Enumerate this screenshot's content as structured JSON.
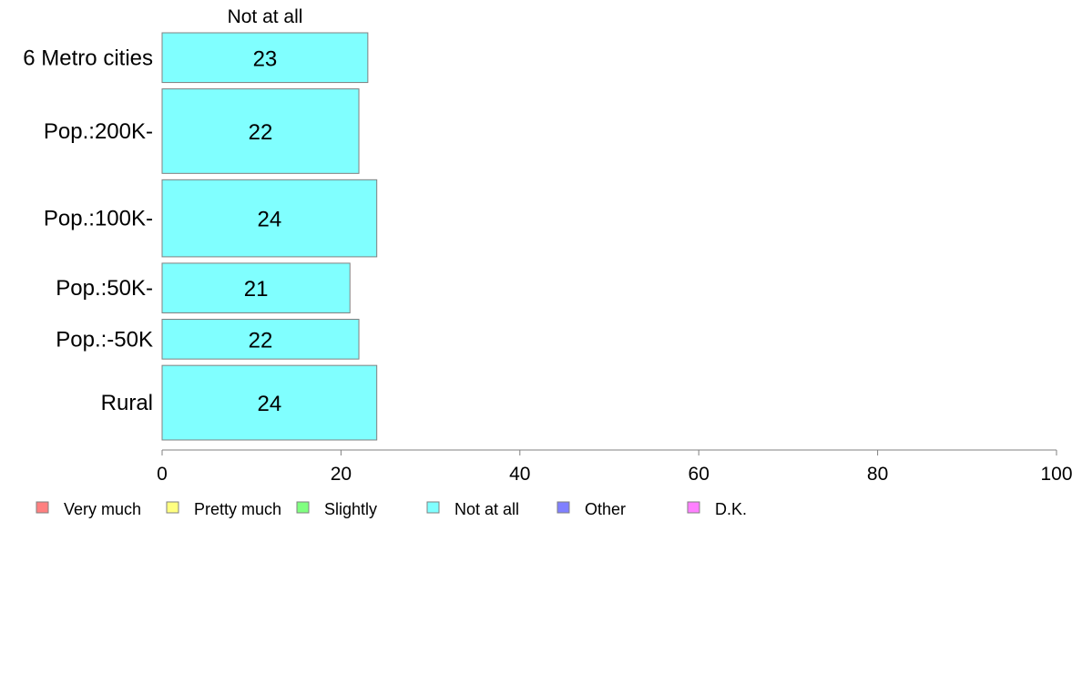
{
  "chart_data": {
    "type": "bar",
    "orientation": "horizontal",
    "stacked": true,
    "column_header": "Not at all",
    "categories": [
      "6 Metro cities",
      "Pop.:200K-",
      "Pop.:100K-",
      "Pop.:50K-",
      "Pop.:-50K",
      "Rural"
    ],
    "category_weights": [
      1.0,
      1.7,
      1.55,
      1.0,
      0.8,
      1.5
    ],
    "series": [
      {
        "name": "Very much",
        "color": "#ff8080",
        "values": [
          0,
          0,
          0,
          0,
          0,
          0
        ]
      },
      {
        "name": "Pretty much",
        "color": "#ffff80",
        "values": [
          0,
          0,
          0,
          0,
          0,
          0
        ]
      },
      {
        "name": "Slightly",
        "color": "#80ff80",
        "values": [
          0,
          0,
          0,
          0,
          0,
          0
        ]
      },
      {
        "name": "Not at all",
        "color": "#80ffff",
        "values": [
          23,
          22,
          24,
          21,
          22,
          24
        ]
      },
      {
        "name": "Other",
        "color": "#8080ff",
        "values": [
          0,
          0,
          0,
          0,
          0,
          0
        ]
      },
      {
        "name": "D.K.",
        "color": "#ff80ff",
        "values": [
          0,
          0,
          0,
          0,
          0,
          0
        ]
      }
    ],
    "data_labels": [
      "23",
      "22",
      "24",
      "21",
      "22",
      "24"
    ],
    "xlim": [
      0,
      100
    ],
    "xticks": [
      0,
      20,
      40,
      60,
      80,
      100
    ],
    "xlabel": "",
    "ylabel": "",
    "title": "",
    "grid": false,
    "legend_position": "bottom",
    "bar_stroke": "#808080",
    "axis_color": "#808080"
  }
}
